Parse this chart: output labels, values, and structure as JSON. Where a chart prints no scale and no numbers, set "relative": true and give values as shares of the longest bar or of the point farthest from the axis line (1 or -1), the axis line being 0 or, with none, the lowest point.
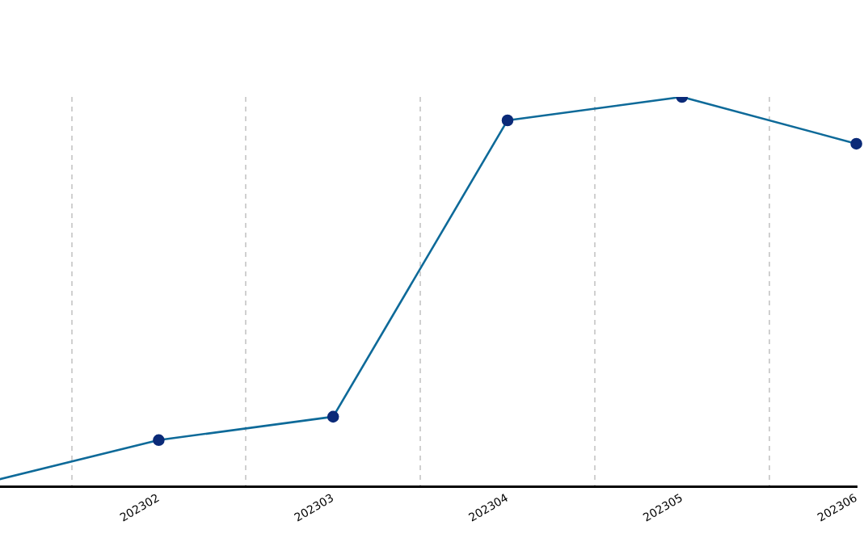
{
  "chart_data": {
    "type": "line",
    "relative": true,
    "categories": [
      null,
      "202302",
      "202303",
      "202304",
      "202305",
      "202306"
    ],
    "series": [
      {
        "color": "#0e6a99",
        "values": [
          0.01,
          0.12,
          0.18,
          0.94,
          1,
          0.88
        ]
      }
    ],
    "marker": "circle",
    "line_style": "solid",
    "grid": "x",
    "legend": false
  }
}
